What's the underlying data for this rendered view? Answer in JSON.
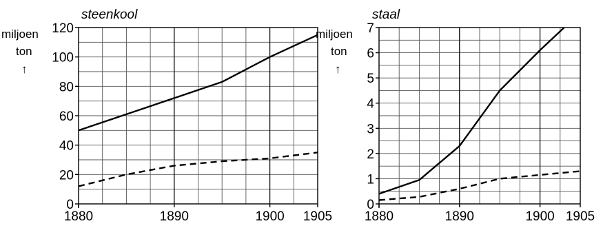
{
  "chart_data": [
    {
      "type": "line",
      "title": "steenkool",
      "ylabel": "miljoen",
      "ylabel2": "ton",
      "arrow": "↑",
      "xlim": [
        1880,
        1905
      ],
      "ylim": [
        0,
        120
      ],
      "xticks": [
        1880,
        1890,
        1900,
        1905
      ],
      "yticks": [
        0,
        20,
        40,
        60,
        80,
        100,
        120
      ],
      "grid": true,
      "series": [
        {
          "style": "solid",
          "x": [
            1880,
            1885,
            1890,
            1895,
            1900,
            1905
          ],
          "y": [
            50,
            61,
            72,
            83,
            100,
            115
          ]
        },
        {
          "style": "dashed",
          "x": [
            1880,
            1885,
            1890,
            1895,
            1900,
            1905
          ],
          "y": [
            12,
            20,
            26,
            29,
            31,
            35
          ]
        }
      ]
    },
    {
      "type": "line",
      "title": "staal",
      "ylabel": "miljoen",
      "ylabel2": "ton",
      "arrow": "↑",
      "xlim": [
        1880,
        1905
      ],
      "ylim": [
        0,
        7
      ],
      "xticks": [
        1880,
        1890,
        1900,
        1905
      ],
      "yticks": [
        0,
        1,
        2,
        3,
        4,
        5,
        6,
        7
      ],
      "grid": true,
      "series": [
        {
          "style": "solid",
          "x": [
            1880,
            1885,
            1890,
            1895,
            1900,
            1903
          ],
          "y": [
            0.4,
            0.95,
            2.3,
            4.5,
            6.1,
            7
          ]
        },
        {
          "style": "dashed",
          "x": [
            1880,
            1885,
            1890,
            1895,
            1900,
            1905
          ],
          "y": [
            0.15,
            0.28,
            0.6,
            1.0,
            1.15,
            1.3
          ]
        }
      ]
    }
  ]
}
